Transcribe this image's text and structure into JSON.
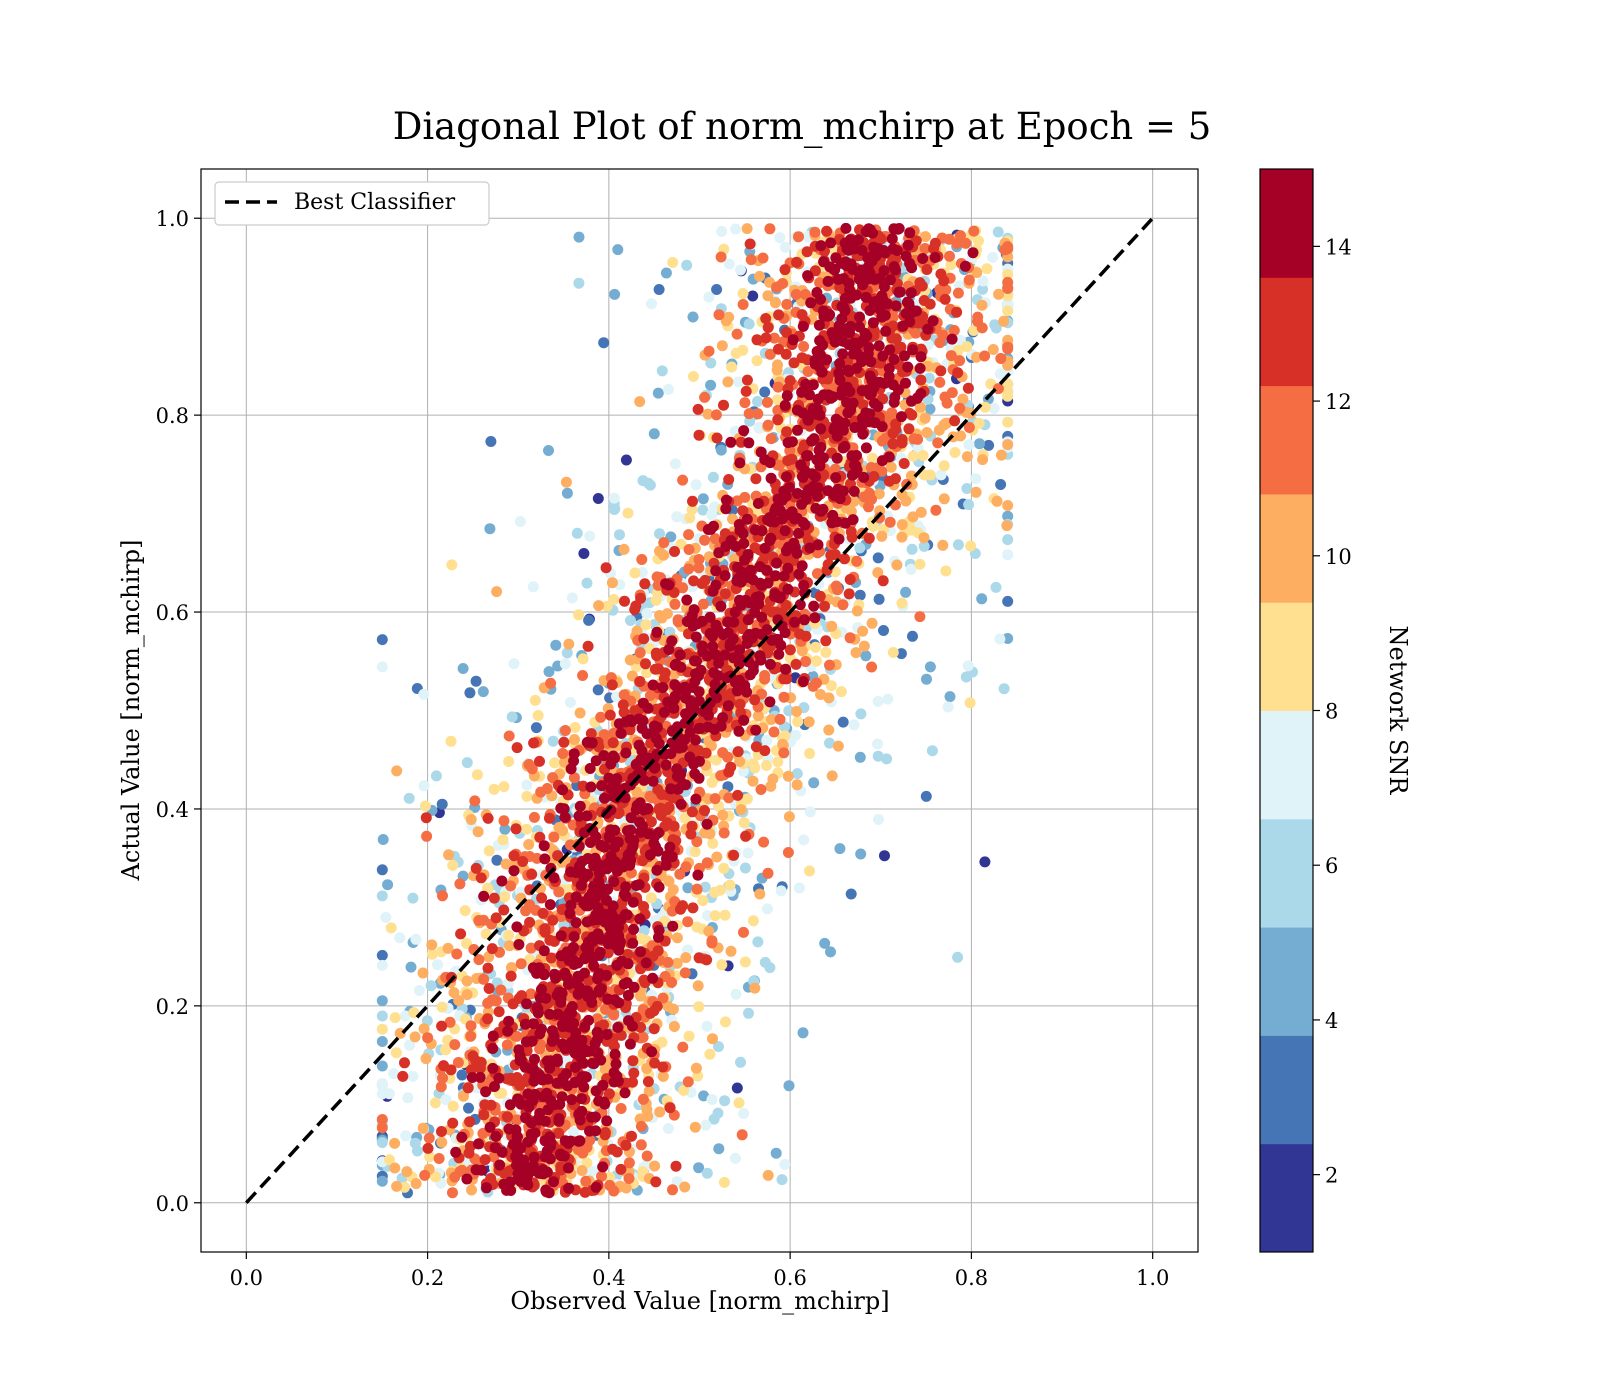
{
  "chart_data": {
    "type": "scatter",
    "title": "Diagonal Plot of norm_mchirp at Epoch = 5",
    "xlabel": "Observed Value [norm_mchirp]",
    "ylabel": "Actual Value [norm_mchirp]",
    "xlim": [
      -0.05,
      1.05
    ],
    "ylim": [
      -0.05,
      1.05
    ],
    "x_ticks": [
      "0.0",
      "0.2",
      "0.4",
      "0.6",
      "0.8",
      "1.0"
    ],
    "y_ticks": [
      "0.0",
      "0.2",
      "0.4",
      "0.6",
      "0.8",
      "1.0"
    ],
    "grid": true,
    "legend": {
      "placement": "upper-left",
      "entries": [
        "Best Classifier"
      ]
    },
    "reference_line": {
      "name": "Best Classifier",
      "style": "dashed",
      "color": "#000000",
      "x": [
        0.0,
        1.0
      ],
      "y": [
        0.0,
        1.0
      ]
    },
    "colorbar": {
      "label": "Network SNR",
      "range": [
        1,
        15
      ],
      "ticks": [
        "2",
        "4",
        "6",
        "8",
        "10",
        "12",
        "14"
      ],
      "colors": [
        "#313695",
        "#4575b4",
        "#74add1",
        "#abd9e9",
        "#e0f3f8",
        "#fee090",
        "#fdae61",
        "#f46d43",
        "#d73027",
        "#a50026"
      ]
    },
    "point_cloud": {
      "description_values": "Dense scatter of (observed, actual) pairs; observed roughly tracks actual with spread increasing at low SNR",
      "band_centers": [
        {
          "actual": 0.05,
          "observed_mean": 0.32
        },
        {
          "actual": 0.2,
          "observed_mean": 0.36
        },
        {
          "actual": 0.4,
          "observed_mean": 0.42
        },
        {
          "actual": 0.6,
          "observed_mean": 0.55
        },
        {
          "actual": 0.8,
          "observed_mean": 0.66
        },
        {
          "actual": 0.95,
          "observed_mean": 0.7
        }
      ],
      "observed_range": [
        0.15,
        0.84
      ],
      "actual_range": [
        0.0,
        0.99
      ]
    }
  }
}
